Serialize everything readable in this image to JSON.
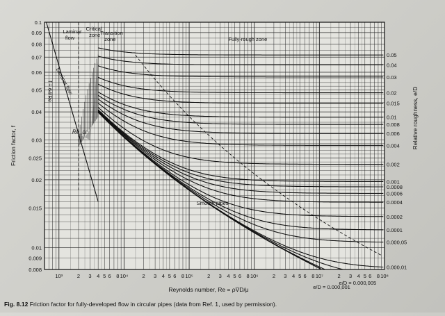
{
  "caption": {
    "label": "Fig. 8.12",
    "text": "Friction factor for fully-developed flow in circular pipes (data from Ref. 1, used by permission)."
  },
  "chart_data": {
    "type": "line",
    "xscale": "log",
    "yscale": "log",
    "xlim": [
      600,
      100000000
    ],
    "ylim": [
      0.008,
      0.1
    ],
    "ylabel": "Friction factor, f",
    "xlabel": "Reynolds number, Re = ρV̄D/μ",
    "right_axis_label": "Relative roughness, e/D",
    "x_tick_labels": [
      {
        "v": 1000,
        "t": "10³"
      },
      {
        "v": 2000,
        "t": "2"
      },
      {
        "v": 3000,
        "t": "3"
      },
      {
        "v": 4000,
        "t": "4"
      },
      {
        "v": 5000,
        "t": "5"
      },
      {
        "v": 6000,
        "t": "6"
      },
      {
        "v": 8000,
        "t": "8"
      },
      {
        "v": 10000,
        "t": "10⁴"
      },
      {
        "v": 20000,
        "t": "2"
      },
      {
        "v": 30000,
        "t": "3"
      },
      {
        "v": 40000,
        "t": "4"
      },
      {
        "v": 50000,
        "t": "5"
      },
      {
        "v": 60000,
        "t": "6"
      },
      {
        "v": 80000,
        "t": "8"
      },
      {
        "v": 100000,
        "t": "10⁵"
      },
      {
        "v": 200000,
        "t": "2"
      },
      {
        "v": 300000,
        "t": "3"
      },
      {
        "v": 400000,
        "t": "4"
      },
      {
        "v": 500000,
        "t": "5"
      },
      {
        "v": 600000,
        "t": "6"
      },
      {
        "v": 800000,
        "t": "8"
      },
      {
        "v": 1000000,
        "t": "10⁶"
      },
      {
        "v": 2000000,
        "t": "2"
      },
      {
        "v": 3000000,
        "t": "3"
      },
      {
        "v": 4000000,
        "t": "4"
      },
      {
        "v": 5000000,
        "t": "5"
      },
      {
        "v": 6000000,
        "t": "6"
      },
      {
        "v": 8000000,
        "t": "8"
      },
      {
        "v": 10000000,
        "t": "10⁷"
      },
      {
        "v": 20000000,
        "t": "2"
      },
      {
        "v": 30000000,
        "t": "3"
      },
      {
        "v": 40000000,
        "t": "4"
      },
      {
        "v": 50000000,
        "t": "5"
      },
      {
        "v": 60000000,
        "t": "6"
      },
      {
        "v": 80000000,
        "t": "8"
      },
      {
        "v": 100000000,
        "t": "10⁸"
      }
    ],
    "y_tick_labels": [
      {
        "v": 0.1,
        "t": "0.1"
      },
      {
        "v": 0.09,
        "t": "0.09"
      },
      {
        "v": 0.08,
        "t": "0.08"
      },
      {
        "v": 0.07,
        "t": "0.07"
      },
      {
        "v": 0.06,
        "t": "0.06"
      },
      {
        "v": 0.05,
        "t": "0.05"
      },
      {
        "v": 0.04,
        "t": "0.04"
      },
      {
        "v": 0.03,
        "t": "0.03"
      },
      {
        "v": 0.025,
        "t": "0.025"
      },
      {
        "v": 0.02,
        "t": "0.02"
      },
      {
        "v": 0.015,
        "t": "0.015"
      },
      {
        "v": 0.01,
        "t": "0.01"
      },
      {
        "v": 0.009,
        "t": "0.009"
      },
      {
        "v": 0.008,
        "t": "0.008"
      }
    ],
    "roughness_curves": [
      {
        "e": 0.05,
        "t": "0.05"
      },
      {
        "e": 0.04,
        "t": "0.04"
      },
      {
        "e": 0.03,
        "t": "0.03"
      },
      {
        "e": 0.02,
        "t": "0.02"
      },
      {
        "e": 0.015,
        "t": "0.015"
      },
      {
        "e": 0.01,
        "t": "0.01"
      },
      {
        "e": 0.008,
        "t": "0.008"
      },
      {
        "e": 0.006,
        "t": "0.006"
      },
      {
        "e": 0.004,
        "t": "0.004"
      },
      {
        "e": 0.002,
        "t": "0.002"
      },
      {
        "e": 0.001,
        "t": "0.001"
      },
      {
        "e": 0.0008,
        "t": "0.0008"
      },
      {
        "e": 0.0006,
        "t": "0.0006"
      },
      {
        "e": 0.0004,
        "t": "0.0004"
      },
      {
        "e": 0.0002,
        "t": "0.0002"
      },
      {
        "e": 0.0001,
        "t": "0.0001"
      },
      {
        "e": 5e-05,
        "t": "0.000,05"
      },
      {
        "e": 1e-05,
        "t": "0.000,01"
      },
      {
        "e": 5e-06,
        "t": "e/D = 0.000,005"
      },
      {
        "e": 1e-06,
        "t": "e/D = 0.000,001"
      }
    ],
    "annotations": {
      "laminar": "Laminar",
      "laminar2": "flow",
      "critical": "Critical",
      "critical2": "zone",
      "transition": "Transition",
      "transition2": "zone",
      "fully_rough": "Fully-rough zone",
      "laminar_flow_line": "Laminar flow",
      "laminar_eq": "f = 64/Re",
      "re_cr": "Re_cr",
      "smooth_pipes": "Smooth pipes"
    },
    "laminar_line": {
      "formula": "f = 64/Re",
      "x": [
        640,
        4000
      ]
    },
    "critical_zone": {
      "x": [
        2000,
        4000
      ]
    },
    "grid": true
  }
}
